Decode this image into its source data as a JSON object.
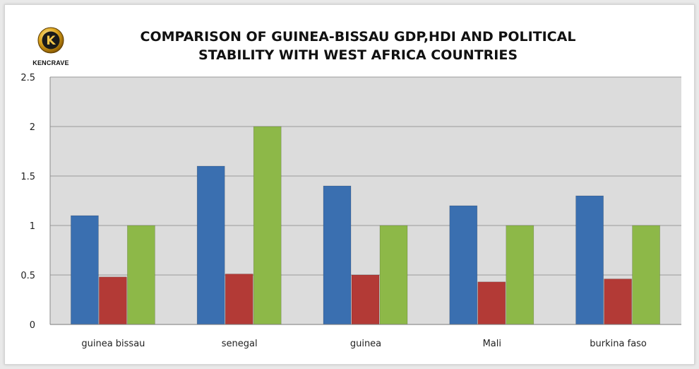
{
  "logo": {
    "text": "KENCRAVE",
    "letter": "K",
    "icon": "k-emblem-icon"
  },
  "chart_data": {
    "type": "bar",
    "title": "COMPARISON OF GUINEA-BISSAU GDP,HDI AND POLITICAL STABILITY WITH WEST AFRICA COUNTRIES",
    "title_lines": [
      "COMPARISON OF GUINEA-BISSAU GDP,HDI AND POLITICAL",
      "STABILITY WITH WEST AFRICA COUNTRIES"
    ],
    "categories": [
      "guinea bissau",
      "senegal",
      "guinea",
      "Mali",
      "burkina faso"
    ],
    "series": [
      {
        "values": [
          1.1,
          1.6,
          1.4,
          1.2,
          1.3
        ],
        "color": "#3a6fb0"
      },
      {
        "values": [
          0.48,
          0.51,
          0.5,
          0.43,
          0.46
        ],
        "color": "#b33a36"
      },
      {
        "values": [
          1.0,
          2.0,
          1.0,
          1.0,
          1.0
        ],
        "color": "#8db848"
      }
    ],
    "yticks": [
      "0",
      "0.5",
      "1",
      "1.5",
      "2",
      "2.5"
    ],
    "ylim": [
      0,
      2.5
    ],
    "grid": true,
    "legend": "none",
    "xlabel": "",
    "ylabel": ""
  }
}
